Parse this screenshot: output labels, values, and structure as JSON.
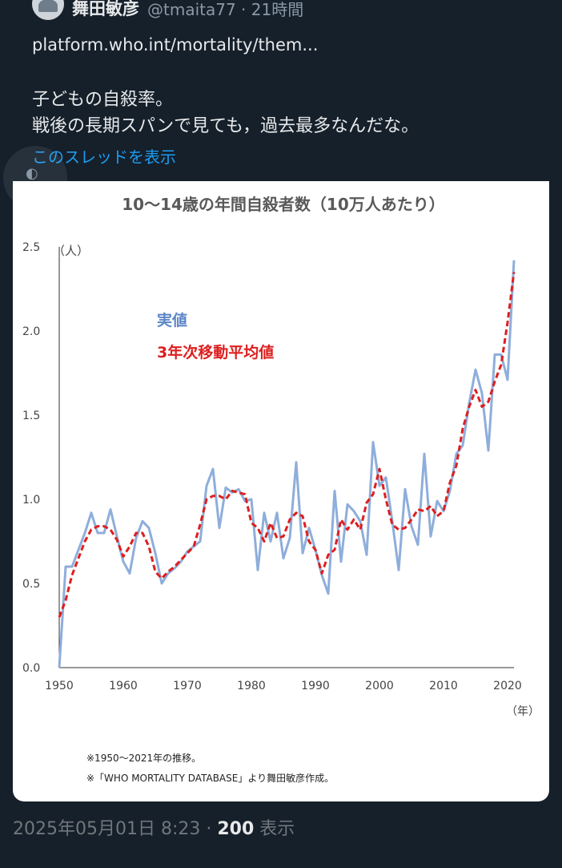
{
  "post": {
    "author_name": "舞田敏彦",
    "handle": "@tmaita77 · 21時間",
    "url_text": "platform.who.int/mortality/them...",
    "body_text": "子どもの自殺率。\n戦後の長期スパンで見ても，過去最多なんだな。",
    "thread_link": "このスレッドを表示"
  },
  "footer": {
    "timestamp": "2025年05月01日 8:23 · ",
    "views_count": "200",
    "views_label": " 表示"
  },
  "chart_data": {
    "type": "line",
    "title": "10～14歳の年間自殺者数（10万人あたり）",
    "ylabel": "（人）",
    "xlabel": "（年）",
    "xlim": [
      1950,
      2021
    ],
    "ylim": [
      0,
      2.5
    ],
    "y_ticks": [
      "0.0",
      "0.5",
      "1.0",
      "1.5",
      "2.0",
      "2.5"
    ],
    "x_ticks": [
      "1950",
      "1960",
      "1970",
      "1980",
      "1990",
      "2000",
      "2010",
      "2020"
    ],
    "legend_position": "upper-left",
    "notes": [
      "※1950～2021年の推移。",
      "※「WHO MORTALITY DATABASE」より舞田敏彦作成。"
    ],
    "colors": {
      "actual": "#8eaedb",
      "moving_average": "#dd1f1f",
      "label_actual": "#5b85c6"
    },
    "series": [
      {
        "name": "実値",
        "x": [
          1950,
          1951,
          1952,
          1953,
          1954,
          1955,
          1956,
          1957,
          1958,
          1959,
          1960,
          1961,
          1962,
          1963,
          1964,
          1965,
          1966,
          1967,
          1968,
          1969,
          1970,
          1971,
          1972,
          1973,
          1974,
          1975,
          1976,
          1977,
          1978,
          1979,
          1980,
          1981,
          1982,
          1983,
          1984,
          1985,
          1986,
          1987,
          1988,
          1989,
          1990,
          1991,
          1992,
          1993,
          1994,
          1995,
          1996,
          1997,
          1998,
          1999,
          2000,
          2001,
          2002,
          2003,
          2004,
          2005,
          2006,
          2007,
          2008,
          2009,
          2010,
          2011,
          2012,
          2013,
          2014,
          2015,
          2016,
          2017,
          2018,
          2019,
          2020,
          2021
        ],
        "values": [
          0.0,
          0.6,
          0.6,
          0.7,
          0.8,
          0.92,
          0.8,
          0.8,
          0.94,
          0.78,
          0.63,
          0.56,
          0.77,
          0.87,
          0.83,
          0.68,
          0.5,
          0.56,
          0.59,
          0.63,
          0.69,
          0.72,
          0.75,
          1.08,
          1.18,
          0.83,
          1.07,
          1.04,
          1.06,
          0.99,
          1.0,
          0.58,
          0.92,
          0.75,
          0.92,
          0.65,
          0.77,
          1.22,
          0.68,
          0.83,
          0.7,
          0.55,
          0.44,
          1.05,
          0.63,
          0.97,
          0.93,
          0.87,
          0.67,
          1.34,
          1.08,
          1.13,
          0.87,
          0.58,
          1.06,
          0.84,
          0.73,
          1.27,
          0.78,
          0.99,
          0.93,
          1.05,
          1.27,
          1.32,
          1.57,
          1.77,
          1.63,
          1.29,
          1.86,
          1.86,
          1.71,
          2.42
        ]
      },
      {
        "name": "3年次移動平均値",
        "x": [
          1950,
          1951,
          1952,
          1953,
          1954,
          1955,
          1956,
          1957,
          1958,
          1959,
          1960,
          1961,
          1962,
          1963,
          1964,
          1965,
          1966,
          1967,
          1968,
          1969,
          1970,
          1971,
          1972,
          1973,
          1974,
          1975,
          1976,
          1977,
          1978,
          1979,
          1980,
          1981,
          1982,
          1983,
          1984,
          1985,
          1986,
          1987,
          1988,
          1989,
          1990,
          1991,
          1992,
          1993,
          1994,
          1995,
          1996,
          1997,
          1998,
          1999,
          2000,
          2001,
          2002,
          2003,
          2004,
          2005,
          2006,
          2007,
          2008,
          2009,
          2010,
          2011,
          2012,
          2013,
          2014,
          2015,
          2016,
          2017,
          2018,
          2019,
          2020,
          2021
        ],
        "values": [
          0.3,
          0.4,
          0.55,
          0.65,
          0.75,
          0.82,
          0.84,
          0.84,
          0.82,
          0.76,
          0.66,
          0.72,
          0.8,
          0.8,
          0.72,
          0.57,
          0.53,
          0.57,
          0.6,
          0.64,
          0.68,
          0.72,
          0.85,
          1.0,
          1.02,
          1.02,
          1.0,
          1.05,
          1.04,
          1.03,
          0.86,
          0.83,
          0.75,
          0.86,
          0.77,
          0.78,
          0.88,
          0.92,
          0.9,
          0.75,
          0.7,
          0.56,
          0.67,
          0.7,
          0.88,
          0.82,
          0.88,
          0.82,
          0.98,
          1.03,
          1.18,
          1.0,
          0.85,
          0.82,
          0.83,
          0.88,
          0.94,
          0.93,
          0.96,
          0.9,
          0.93,
          1.1,
          1.2,
          1.42,
          1.55,
          1.65,
          1.55,
          1.58,
          1.7,
          1.8,
          2.05,
          2.35
        ]
      }
    ]
  }
}
